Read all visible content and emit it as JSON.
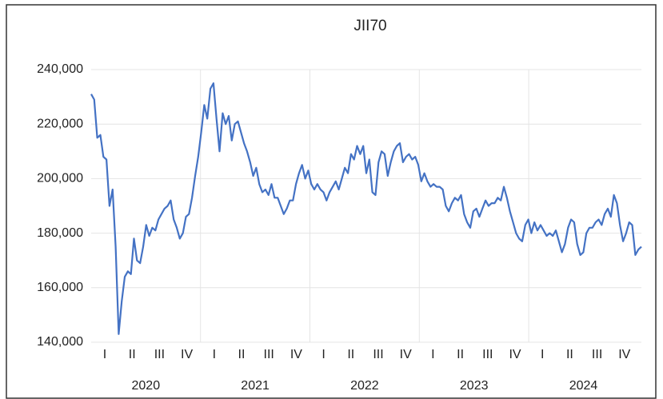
{
  "chart_data": {
    "type": "line",
    "title": "JII70",
    "quarters": [
      "I",
      "II",
      "III",
      "IV",
      "I",
      "II",
      "III",
      "IV",
      "I",
      "II",
      "III",
      "IV",
      "I",
      "II",
      "III",
      "IV",
      "I",
      "II",
      "III",
      "IV"
    ],
    "years": [
      "2020",
      "2021",
      "2022",
      "2023",
      "2024"
    ],
    "color": "#4472c4",
    "ylim": [
      140000,
      240000
    ],
    "yticks": [
      {
        "value": 140000,
        "label": "140,000"
      },
      {
        "value": 160000,
        "label": "160,000"
      },
      {
        "value": 180000,
        "label": "180,000"
      },
      {
        "value": 200000,
        "label": "200,000"
      },
      {
        "value": 220000,
        "label": "220,000"
      },
      {
        "value": 240000,
        "label": "240,000"
      }
    ],
    "grid": true,
    "values": [
      231000,
      229000,
      215000,
      216000,
      208000,
      207000,
      190000,
      196000,
      175000,
      143000,
      155000,
      164000,
      166000,
      165000,
      178000,
      170000,
      169000,
      175000,
      183000,
      179000,
      182000,
      181000,
      185000,
      187000,
      189000,
      190000,
      192000,
      185000,
      182000,
      178000,
      180000,
      186000,
      187000,
      193000,
      201000,
      208000,
      217000,
      227000,
      222000,
      233000,
      235000,
      222000,
      210000,
      224000,
      220000,
      223000,
      214000,
      220000,
      221000,
      217000,
      213000,
      210000,
      206000,
      201000,
      204000,
      198000,
      195000,
      196000,
      194000,
      198000,
      193000,
      193000,
      190000,
      187000,
      189000,
      192000,
      192000,
      198000,
      202000,
      205000,
      200000,
      203000,
      198000,
      196000,
      198000,
      196000,
      195000,
      192000,
      195000,
      197000,
      199000,
      196000,
      200000,
      204000,
      202000,
      209000,
      207000,
      212000,
      209000,
      212000,
      202000,
      207000,
      195000,
      194000,
      206000,
      210000,
      209000,
      201000,
      206000,
      210000,
      212000,
      213000,
      206000,
      208000,
      209000,
      207000,
      208000,
      205000,
      199000,
      202000,
      199000,
      197000,
      198000,
      197000,
      197000,
      196000,
      190000,
      188000,
      191000,
      193000,
      192000,
      194000,
      187000,
      184000,
      182000,
      188000,
      189000,
      186000,
      189000,
      192000,
      190000,
      191000,
      191000,
      193000,
      192000,
      197000,
      193000,
      188000,
      184000,
      180000,
      178000,
      177000,
      183000,
      185000,
      180000,
      184000,
      181000,
      183000,
      181000,
      179000,
      180000,
      179000,
      181000,
      177000,
      173000,
      176000,
      182000,
      185000,
      184000,
      176000,
      172000,
      173000,
      180000,
      182000,
      182000,
      184000,
      185000,
      183000,
      187000,
      189000,
      186000,
      194000,
      191000,
      183000,
      177000,
      180000,
      184000,
      183000,
      172000,
      174000,
      175000
    ]
  }
}
